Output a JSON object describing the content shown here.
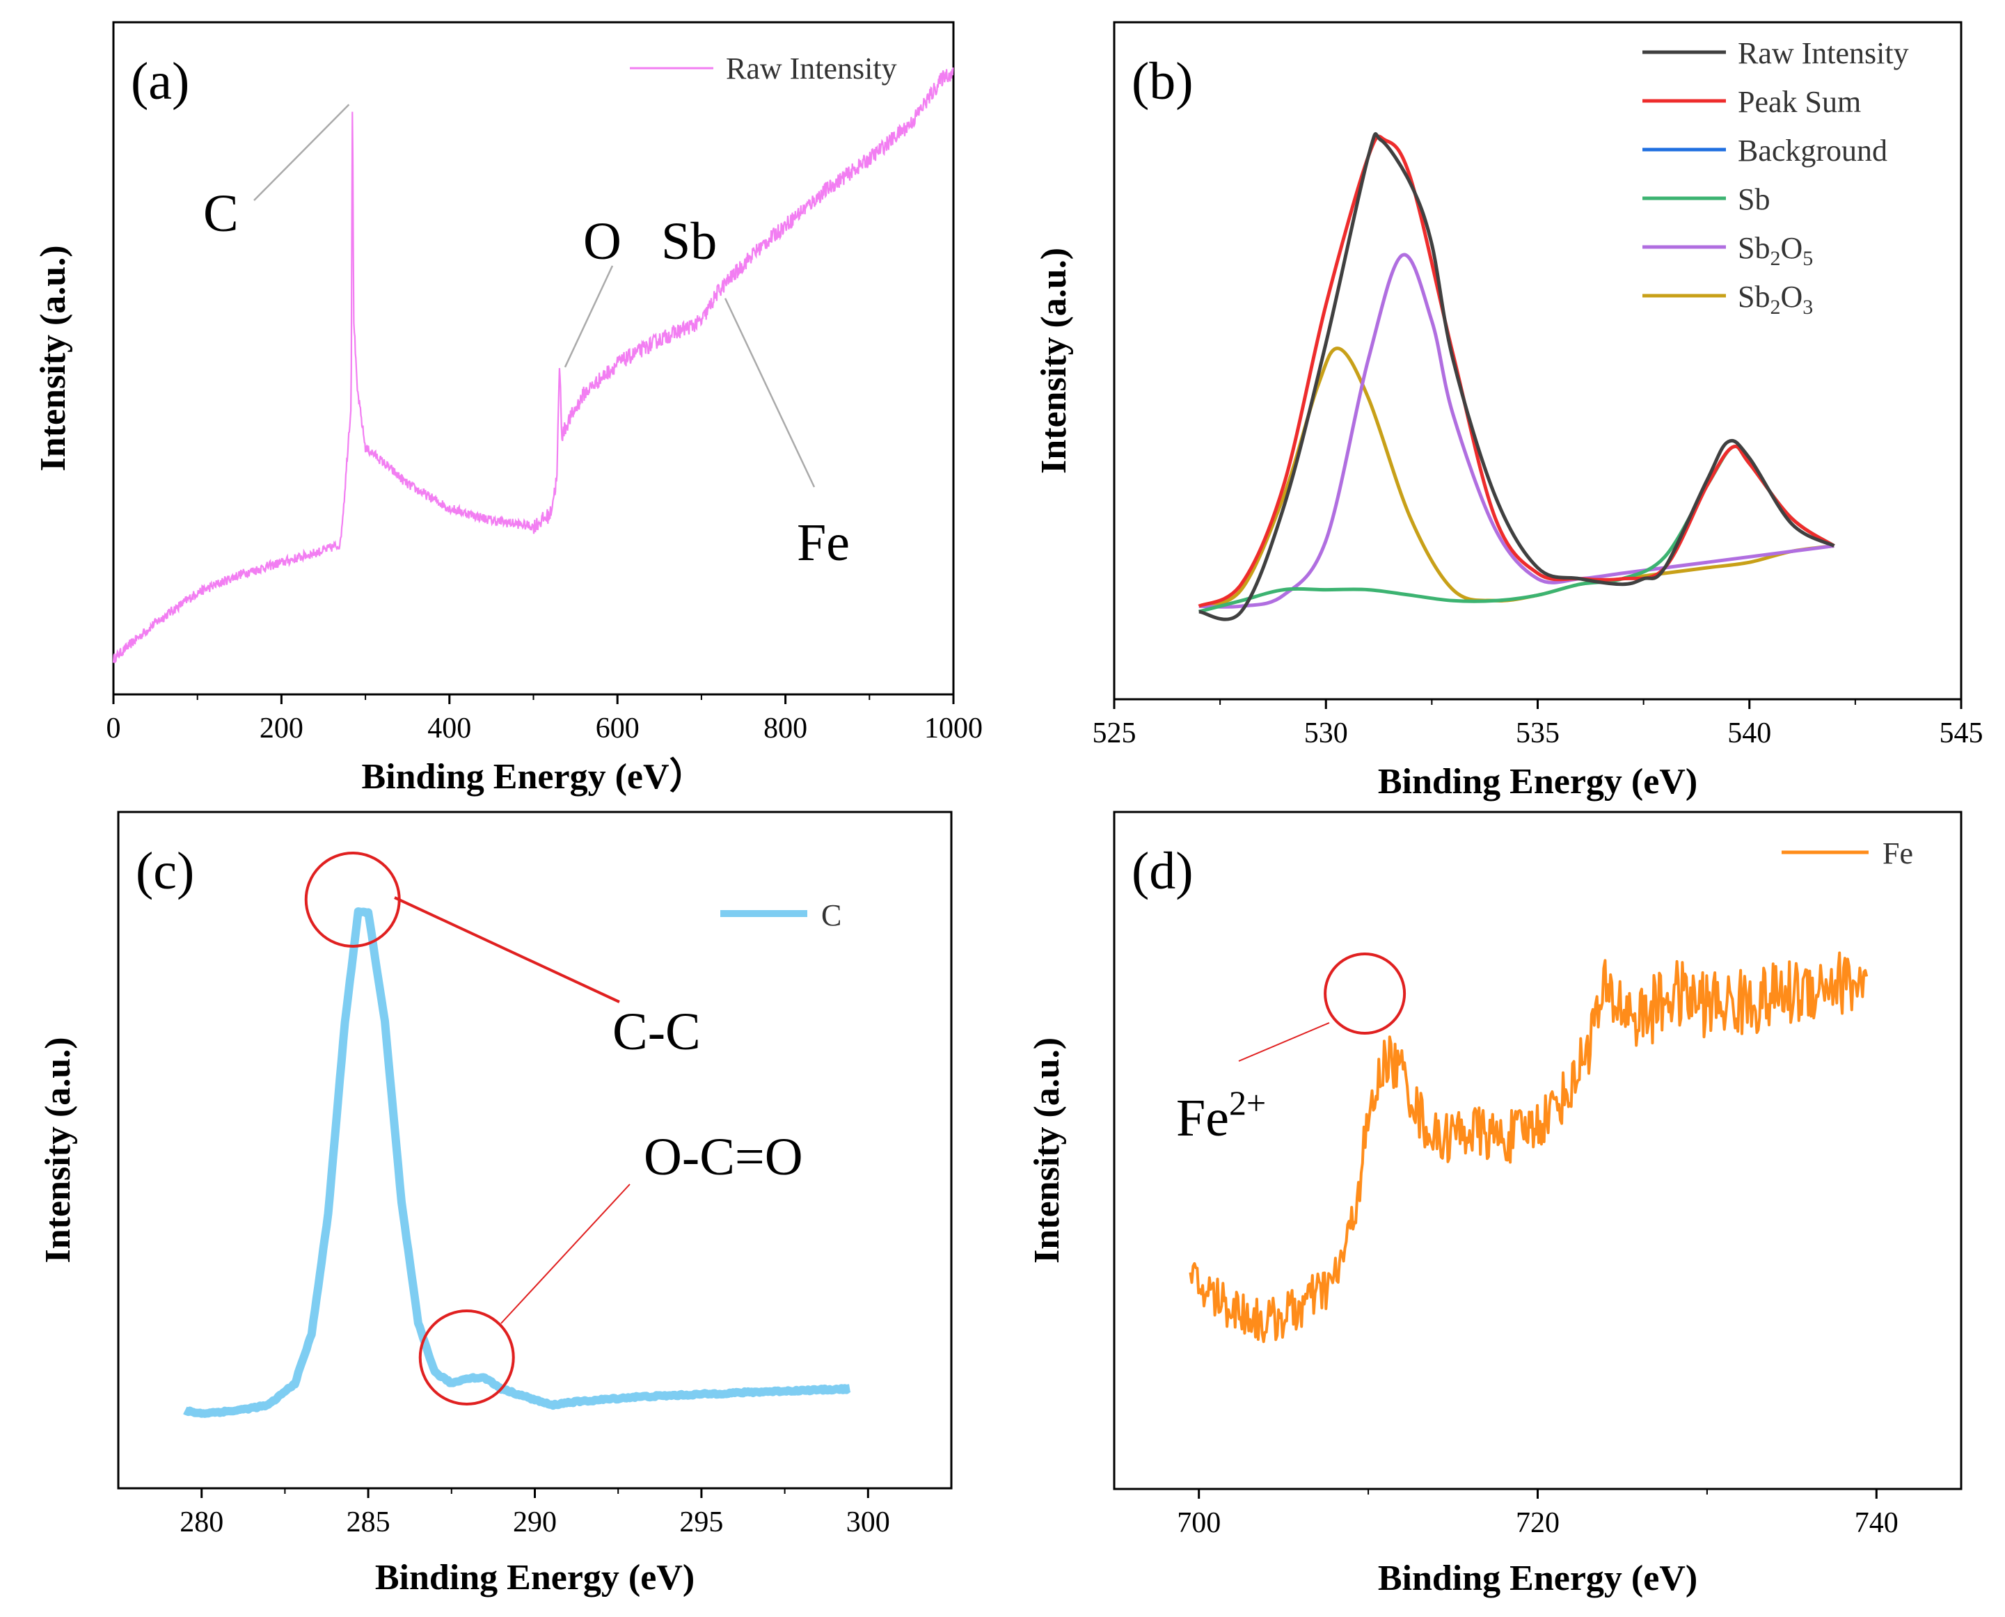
{
  "colors": {
    "a_raw": "#f27ef2",
    "b_raw": "#404040",
    "b_peak": "#ee2c2c",
    "b_bg": "#1f6fe0",
    "b_sb": "#3cb371",
    "b_sb2o5": "#b06ee0",
    "b_sb2o3": "#c8a018",
    "c_line": "#7ecdf2",
    "d_line": "#ff8c1a",
    "circle": "#e02020"
  },
  "chart_data": [
    {
      "panel": "(a)",
      "type": "line",
      "xlabel": "Binding Energy (eV）",
      "ylabel": "Intensity (a.u.)",
      "xlim": [
        0,
        1000
      ],
      "xticks": [
        0,
        200,
        400,
        600,
        800,
        1000
      ],
      "ylim": [
        0,
        100
      ],
      "legend": [
        "Raw Intensity"
      ],
      "anchors": [
        [
          0,
          3
        ],
        [
          50,
          9
        ],
        [
          100,
          14
        ],
        [
          150,
          17
        ],
        [
          200,
          19
        ],
        [
          250,
          21
        ],
        [
          270,
          22
        ],
        [
          275,
          30
        ],
        [
          280,
          40
        ],
        [
          283,
          45
        ],
        [
          284.5,
          98
        ],
        [
          286,
          60
        ],
        [
          290,
          48
        ],
        [
          300,
          38
        ],
        [
          310,
          37
        ],
        [
          350,
          32
        ],
        [
          400,
          28
        ],
        [
          450,
          26
        ],
        [
          500,
          25
        ],
        [
          520,
          27
        ],
        [
          528,
          33
        ],
        [
          531,
          52
        ],
        [
          534,
          40
        ],
        [
          540,
          42
        ],
        [
          560,
          47
        ],
        [
          600,
          52
        ],
        [
          650,
          56
        ],
        [
          700,
          59
        ],
        [
          720,
          64
        ],
        [
          760,
          70
        ],
        [
          800,
          75
        ],
        [
          850,
          81
        ],
        [
          900,
          86
        ],
        [
          950,
          92
        ],
        [
          990,
          100
        ],
        [
          1000,
          100
        ]
      ],
      "annotations": [
        {
          "text": "C",
          "x": 284.5
        },
        {
          "text": "O",
          "x": 531
        },
        {
          "text": "Sb",
          "x": 531
        },
        {
          "text": "Fe",
          "x": 720
        }
      ]
    },
    {
      "panel": "(b)",
      "type": "line",
      "xlabel": "Binding Energy (eV)",
      "ylabel": "Intensity (a.u.)",
      "xlim": [
        525,
        545
      ],
      "xticks": [
        525,
        530,
        535,
        540,
        545
      ],
      "ylim": [
        0,
        100
      ],
      "series": [
        {
          "name": "Raw Intensity",
          "points": [
            [
              527,
              9
            ],
            [
              528,
              9
            ],
            [
              529,
              28
            ],
            [
              530,
              58
            ],
            [
              531,
              92
            ],
            [
              531.3,
              95
            ],
            [
              532,
              87
            ],
            [
              532.5,
              76
            ],
            [
              533,
              55
            ],
            [
              534,
              30
            ],
            [
              535,
              17
            ],
            [
              536,
              15
            ],
            [
              537,
              14
            ],
            [
              537.5,
              15
            ],
            [
              538,
              17
            ],
            [
              539,
              33
            ],
            [
              539.5,
              40
            ],
            [
              540,
              37
            ],
            [
              541,
              25
            ],
            [
              542,
              21
            ]
          ]
        },
        {
          "name": "Peak Sum",
          "points": [
            [
              527,
              10
            ],
            [
              528,
              14
            ],
            [
              529,
              32
            ],
            [
              530,
              65
            ],
            [
              531,
              92
            ],
            [
              531.4,
              95
            ],
            [
              532,
              88
            ],
            [
              533,
              56
            ],
            [
              534,
              26
            ],
            [
              535,
              16
            ],
            [
              536,
              15
            ],
            [
              537,
              15
            ],
            [
              538,
              17
            ],
            [
              539,
              32
            ],
            [
              539.6,
              39
            ],
            [
              540,
              36
            ],
            [
              541,
              26
            ],
            [
              542,
              21
            ]
          ]
        },
        {
          "name": "Background",
          "points": []
        },
        {
          "name": "Sb",
          "points": [
            [
              527,
              9
            ],
            [
              528,
              11
            ],
            [
              529,
              13
            ],
            [
              530,
              13
            ],
            [
              531,
              13
            ],
            [
              532,
              12
            ],
            [
              533,
              11
            ],
            [
              534,
              11
            ],
            [
              535,
              12
            ],
            [
              536,
              14
            ],
            [
              537,
              15
            ],
            [
              538,
              19
            ],
            [
              539,
              32
            ],
            [
              539.6,
              39
            ],
            [
              540,
              36
            ],
            [
              541,
              26
            ],
            [
              542,
              21
            ]
          ]
        },
        {
          "name": "Sb2O5",
          "points": [
            [
              527,
              10
            ],
            [
              528,
              10
            ],
            [
              529,
              12
            ],
            [
              530,
              22
            ],
            [
              531,
              55
            ],
            [
              531.8,
              74
            ],
            [
              532.5,
              62
            ],
            [
              533,
              45
            ],
            [
              534,
              24
            ],
            [
              535,
              15
            ],
            [
              536,
              15
            ],
            [
              537,
              16
            ],
            [
              538,
              17
            ],
            [
              539,
              18
            ],
            [
              540,
              19
            ],
            [
              541,
              20
            ],
            [
              542,
              21
            ]
          ]
        },
        {
          "name": "Sb2O3",
          "points": [
            [
              527,
              10
            ],
            [
              528,
              13
            ],
            [
              529,
              30
            ],
            [
              529.8,
              50
            ],
            [
              530.3,
              57
            ],
            [
              531,
              48
            ],
            [
              532,
              26
            ],
            [
              533,
              13
            ],
            [
              534,
              11
            ],
            [
              535,
              12
            ],
            [
              536,
              14
            ],
            [
              537,
              15
            ],
            [
              538,
              16
            ],
            [
              539,
              17
            ],
            [
              540,
              18
            ],
            [
              541,
              20
            ],
            [
              542,
              21
            ]
          ]
        }
      ]
    },
    {
      "panel": "(c)",
      "type": "line",
      "xlabel": "Binding Energy (eV)",
      "ylabel": "Intensity (a.u.)",
      "xlim": [
        277.5,
        302.5
      ],
      "xticks": [
        280,
        285,
        290,
        295,
        300
      ],
      "ylim": [
        0,
        100
      ],
      "legend": [
        "C"
      ],
      "points": [
        [
          279.5,
          4
        ],
        [
          280,
          3.5
        ],
        [
          281,
          4
        ],
        [
          282,
          5
        ],
        [
          282.8,
          9
        ],
        [
          283.3,
          18
        ],
        [
          283.8,
          40
        ],
        [
          284.3,
          75
        ],
        [
          284.7,
          95
        ],
        [
          285,
          95
        ],
        [
          285.5,
          75
        ],
        [
          286,
          42
        ],
        [
          286.5,
          20
        ],
        [
          287,
          11
        ],
        [
          287.5,
          9
        ],
        [
          288,
          10
        ],
        [
          288.5,
          10
        ],
        [
          289,
          8
        ],
        [
          290,
          6
        ],
        [
          290.5,
          5
        ],
        [
          291,
          5.5
        ],
        [
          292,
          6
        ],
        [
          293,
          6.5
        ],
        [
          295,
          7
        ],
        [
          297,
          7.5
        ],
        [
          299.5,
          8
        ]
      ],
      "annotations": [
        {
          "text": "C-C",
          "x": 284.7
        },
        {
          "text": "O-C=O",
          "x": 288
        }
      ]
    },
    {
      "panel": "(d)",
      "type": "line",
      "xlabel": "Binding Energy (eV)",
      "ylabel": "Intensity (a.u.)",
      "xlim": [
        695,
        745
      ],
      "xticks": [
        700,
        720,
        740
      ],
      "ylim": [
        0,
        100
      ],
      "legend": [
        "Fe"
      ],
      "points": [
        [
          699.5,
          25
        ],
        [
          701,
          22
        ],
        [
          702,
          20
        ],
        [
          704,
          17
        ],
        [
          706,
          20
        ],
        [
          708,
          25
        ],
        [
          709,
          35
        ],
        [
          710,
          55
        ],
        [
          711,
          68
        ],
        [
          712,
          65
        ],
        [
          713,
          57
        ],
        [
          714,
          52
        ],
        [
          716,
          54
        ],
        [
          718,
          52
        ],
        [
          720,
          55
        ],
        [
          722,
          62
        ],
        [
          724,
          80
        ],
        [
          726,
          75
        ],
        [
          728,
          80
        ],
        [
          730,
          78
        ],
        [
          732,
          78
        ],
        [
          735,
          80
        ],
        [
          737,
          82
        ],
        [
          739.5,
          82
        ]
      ],
      "annotations": [
        {
          "text": "Fe",
          "superscript": "2+",
          "x": 710
        }
      ]
    }
  ]
}
